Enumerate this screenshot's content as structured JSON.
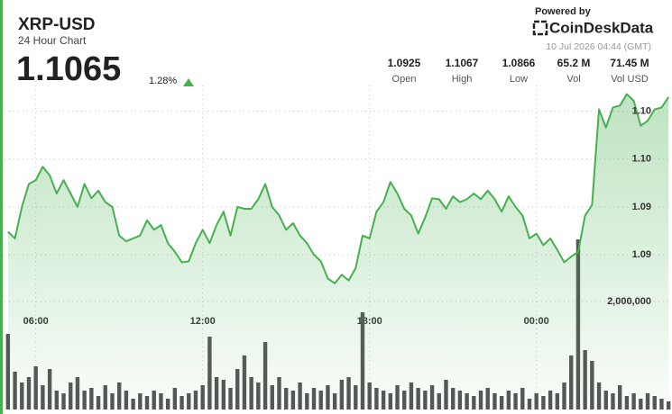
{
  "header": {
    "title": "XRP-USD",
    "subtitle": "24 Hour Chart",
    "price": 1.1065,
    "change": {
      "value": 1.28,
      "label": "1.28%"
    },
    "powered_by": "Powered by",
    "brand": "CoinDeskData",
    "timestamp": "10 Jul 2026 04:44 (GMT)",
    "stats": [
      {
        "value": 1.0925,
        "label": "Open"
      },
      {
        "value": 1.1067,
        "label": "High"
      },
      {
        "value": 1.0866,
        "label": "Low"
      },
      {
        "value": "65.2 M",
        "label": "Vol"
      },
      {
        "value": "71.45 M",
        "label": "Vol USD"
      }
    ]
  },
  "chart_data": {
    "type": "line",
    "categories": [
      null,
      null,
      null,
      null,
      "06:00",
      null,
      null,
      null,
      null,
      null,
      null,
      null,
      null,
      null,
      null,
      null,
      null,
      null,
      null,
      null,
      null,
      null,
      null,
      null,
      null,
      null,
      null,
      null,
      "12:00",
      null,
      null,
      null,
      null,
      null,
      null,
      null,
      null,
      null,
      null,
      null,
      null,
      null,
      null,
      null,
      null,
      null,
      null,
      null,
      null,
      null,
      null,
      null,
      "18:00",
      null,
      null,
      null,
      null,
      null,
      null,
      null,
      null,
      null,
      null,
      null,
      null,
      null,
      null,
      null,
      null,
      null,
      null,
      null,
      null,
      null,
      null,
      null,
      "00:00",
      null,
      null,
      null,
      null,
      null,
      null,
      null,
      null,
      null,
      null,
      null,
      null,
      null,
      null,
      null,
      null,
      null,
      null,
      null
    ],
    "series": [
      {
        "type": "line",
        "color": "#46b04f",
        "values": [
          1.0924,
          1.0917,
          1.095,
          1.0974,
          1.0978,
          1.0992,
          1.0983,
          1.0964,
          1.0978,
          1.0964,
          1.095,
          1.0974,
          1.0959,
          1.0967,
          1.0955,
          1.095,
          1.092,
          1.0914,
          1.0917,
          1.092,
          1.0936,
          1.0926,
          1.0931,
          1.0912,
          1.0903,
          1.0892,
          1.0893,
          1.0912,
          1.0926,
          1.0912,
          1.0931,
          1.0945,
          1.092,
          1.095,
          1.0948,
          1.0948,
          1.0958,
          1.0974,
          1.095,
          1.0941,
          1.0926,
          1.0933,
          1.092,
          1.0912,
          1.09,
          1.0893,
          1.0875,
          1.087,
          1.0879,
          1.0873,
          1.0886,
          1.092,
          1.0917,
          1.0945,
          1.0955,
          1.0976,
          1.0964,
          1.0948,
          1.0941,
          1.0922,
          1.0939,
          1.0959,
          1.0958,
          1.0948,
          1.0961,
          1.0955,
          1.0958,
          1.0964,
          1.0958,
          1.0967,
          1.0958,
          1.0945,
          1.0961,
          1.095,
          1.0941,
          1.0917,
          1.0922,
          1.091,
          1.0917,
          1.0905,
          1.0892,
          1.0898,
          1.0903,
          1.0941,
          1.0952,
          1.1052,
          1.1033,
          1.1054,
          1.1056,
          1.1068,
          1.1061,
          1.1035,
          1.104,
          1.1052,
          1.1054,
          1.1065
        ]
      },
      {
        "type": "bar",
        "axis": "y2",
        "color": "#555555",
        "values": [
          1400000,
          700000,
          500000,
          600000,
          800000,
          450000,
          750000,
          350000,
          300000,
          500000,
          600000,
          350000,
          400000,
          250000,
          450000,
          300000,
          500000,
          350000,
          200000,
          300000,
          250000,
          350000,
          300000,
          200000,
          400000,
          250000,
          300000,
          350000,
          450000,
          1350000,
          600000,
          550000,
          400000,
          750000,
          1000000,
          600000,
          500000,
          1250000,
          450000,
          600000,
          400000,
          350000,
          500000,
          300000,
          400000,
          350000,
          450000,
          300000,
          550000,
          600000,
          450000,
          1800000,
          500000,
          400000,
          350000,
          300000,
          450000,
          350000,
          500000,
          400000,
          350000,
          450000,
          300000,
          550000,
          400000,
          350000,
          300000,
          250000,
          350000,
          400000,
          300000,
          250000,
          350000,
          300000,
          400000,
          200000,
          300000,
          250000,
          350000,
          300000,
          500000,
          1000000,
          3150000,
          1100000,
          900000,
          500000,
          350000,
          300000,
          450000,
          250000,
          300000,
          200000,
          300000,
          250000,
          200000,
          150000
        ]
      }
    ],
    "ylim": [
      1.0738,
      1.1077
    ],
    "yticks": [
      {
        "value": 1.105,
        "label": "1.10"
      },
      {
        "value": 1.1,
        "label": "1.10"
      },
      {
        "value": 1.095,
        "label": "1.09"
      },
      {
        "value": 1.09,
        "label": "1.09"
      }
    ],
    "y2lim": [
      0,
      6000000
    ],
    "y2ticks": [
      {
        "value": 2000000,
        "label": "2,000,000"
      }
    ],
    "grid": true
  }
}
